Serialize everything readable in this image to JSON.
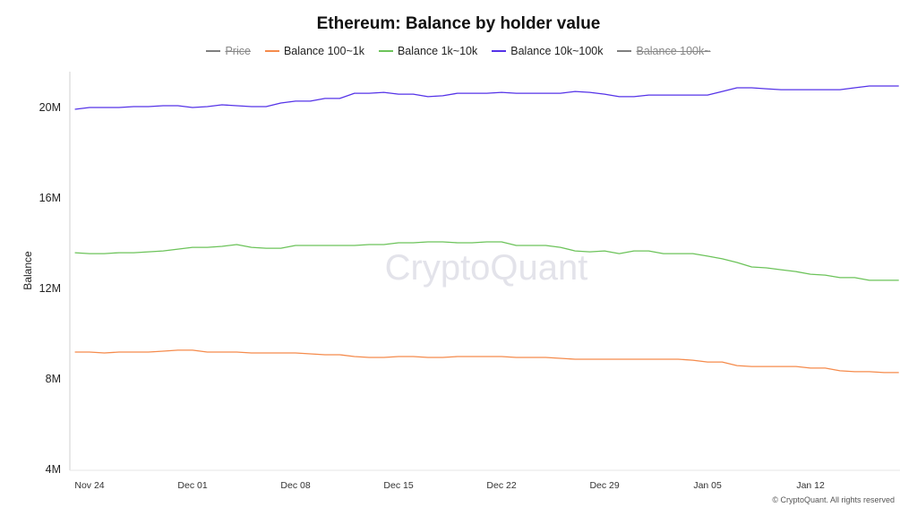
{
  "chart_data": {
    "type": "line",
    "title": "Ethereum: Balance by holder value",
    "xlabel": "",
    "ylabel": "Balance",
    "ylim": [
      4000000,
      21500000
    ],
    "yticks": [
      "4M",
      "8M",
      "12M",
      "16M",
      "20M"
    ],
    "ytick_values": [
      4000000,
      8000000,
      12000000,
      16000000,
      20000000
    ],
    "xticks": [
      "Nov 24",
      "Dec 01",
      "Dec 08",
      "Dec 15",
      "Dec 22",
      "Dec 29",
      "Jan 05",
      "Jan 12"
    ],
    "grid": false,
    "legend_placement": "top",
    "legend": [
      {
        "name": "Price",
        "color": "#7f7f7f",
        "hidden": true
      },
      {
        "name": "Balance 100~1k",
        "color": "#f58b4c",
        "hidden": false
      },
      {
        "name": "Balance 1k~10k",
        "color": "#6cc35a",
        "hidden": false
      },
      {
        "name": "Balance 10k~100k",
        "color": "#5533e8",
        "hidden": false
      },
      {
        "name": "Balance 100k~",
        "color": "#7f7f7f",
        "hidden": true
      }
    ],
    "x": [
      "Nov 23",
      "Nov 24",
      "Nov 25",
      "Nov 26",
      "Nov 27",
      "Nov 28",
      "Nov 29",
      "Nov 30",
      "Dec 01",
      "Dec 02",
      "Dec 03",
      "Dec 04",
      "Dec 05",
      "Dec 06",
      "Dec 07",
      "Dec 08",
      "Dec 09",
      "Dec 10",
      "Dec 11",
      "Dec 12",
      "Dec 13",
      "Dec 14",
      "Dec 15",
      "Dec 16",
      "Dec 17",
      "Dec 18",
      "Dec 19",
      "Dec 20",
      "Dec 21",
      "Dec 22",
      "Dec 23",
      "Dec 24",
      "Dec 25",
      "Dec 26",
      "Dec 27",
      "Dec 28",
      "Dec 29",
      "Dec 30",
      "Dec 31",
      "Jan 01",
      "Jan 02",
      "Jan 03",
      "Jan 04",
      "Jan 05",
      "Jan 06",
      "Jan 07",
      "Jan 08",
      "Jan 09",
      "Jan 10",
      "Jan 11",
      "Jan 12",
      "Jan 13",
      "Jan 14",
      "Jan 15",
      "Jan 16",
      "Jan 17",
      "Jan 18"
    ],
    "series": [
      {
        "name": "Balance 100~1k",
        "color": "#f58b4c",
        "unit": "M",
        "values": [
          9.15,
          9.15,
          9.11,
          9.15,
          9.15,
          9.15,
          9.19,
          9.23,
          9.23,
          9.15,
          9.15,
          9.15,
          9.11,
          9.11,
          9.11,
          9.11,
          9.07,
          9.03,
          9.03,
          8.95,
          8.91,
          8.91,
          8.95,
          8.95,
          8.91,
          8.91,
          8.95,
          8.95,
          8.95,
          8.95,
          8.91,
          8.91,
          8.91,
          8.87,
          8.83,
          8.83,
          8.83,
          8.83,
          8.83,
          8.83,
          8.83,
          8.83,
          8.79,
          8.71,
          8.71,
          8.55,
          8.51,
          8.51,
          8.51,
          8.51,
          8.44,
          8.44,
          8.32,
          8.28,
          8.28,
          8.24,
          8.24
        ]
      },
      {
        "name": "Balance 1k~10k",
        "color": "#6cc35a",
        "unit": "M",
        "values": [
          13.54,
          13.5,
          13.5,
          13.54,
          13.54,
          13.58,
          13.62,
          13.7,
          13.78,
          13.78,
          13.82,
          13.9,
          13.78,
          13.74,
          13.74,
          13.86,
          13.86,
          13.86,
          13.86,
          13.86,
          13.9,
          13.9,
          13.98,
          13.98,
          14.02,
          14.02,
          13.98,
          13.98,
          14.02,
          14.02,
          13.86,
          13.86,
          13.86,
          13.78,
          13.62,
          13.58,
          13.62,
          13.5,
          13.62,
          13.62,
          13.5,
          13.5,
          13.5,
          13.39,
          13.27,
          13.11,
          12.91,
          12.87,
          12.79,
          12.71,
          12.59,
          12.55,
          12.44,
          12.44,
          12.32,
          12.32,
          12.32
        ]
      },
      {
        "name": "Balance 10k~100k",
        "color": "#5533e8",
        "unit": "M",
        "values": [
          19.88,
          19.96,
          19.96,
          19.96,
          20.0,
          20.0,
          20.04,
          20.04,
          19.96,
          20.0,
          20.08,
          20.04,
          20.0,
          20.0,
          20.16,
          20.24,
          20.24,
          20.36,
          20.36,
          20.59,
          20.59,
          20.63,
          20.55,
          20.55,
          20.44,
          20.48,
          20.59,
          20.59,
          20.59,
          20.63,
          20.59,
          20.59,
          20.59,
          20.59,
          20.67,
          20.63,
          20.55,
          20.44,
          20.44,
          20.51,
          20.51,
          20.51,
          20.51,
          20.51,
          20.67,
          20.83,
          20.83,
          20.79,
          20.75,
          20.75,
          20.75,
          20.75,
          20.75,
          20.83,
          20.91,
          20.91,
          20.91
        ]
      }
    ],
    "watermark": "CryptoQuant",
    "footer": "© CryptoQuant. All rights reserved"
  }
}
